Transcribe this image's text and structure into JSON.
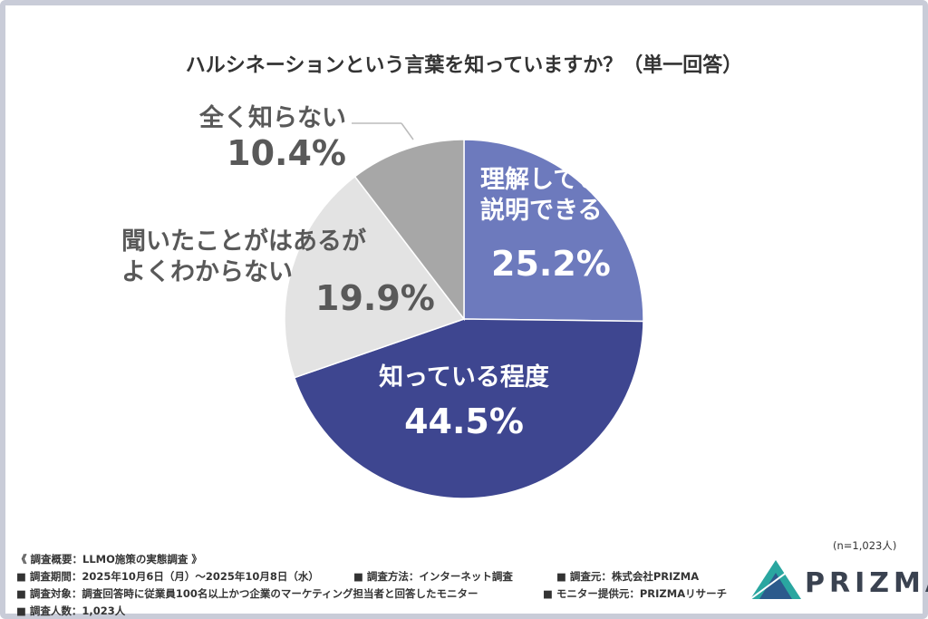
{
  "chart_data": {
    "type": "pie",
    "title": "ハルシネーションという言葉を知っていますか？（単一回答）",
    "categories": [
      "理解していて\n説明できる",
      "知っている程度",
      "聞いたことがはあるが\nよくわからない",
      "全く知らない"
    ],
    "values": [
      25.2,
      44.5,
      19.9,
      10.4
    ],
    "value_labels": [
      "25.2%",
      "44.5%",
      "19.9%",
      "10.4%"
    ],
    "colors": [
      "#6d7abd",
      "#3e4690",
      "#e3e3e3",
      "#a7a7a7"
    ],
    "note": "(n=1,023人)"
  },
  "survey_info": {
    "heading": "《 調査概要：LLMO施策の実態調査 》",
    "period": "■ 調査期間：2025年10月6日（月）～2025年10月8日（水）",
    "method": "■ 調査方法：インターネット調査",
    "source": "■ 調査元：株式会社PRIZMA",
    "target": "■ 調査対象：調査回答時に従業員100名以上かつ企業のマーケティング担当者と回答したモニター",
    "provider": "■ モニター提供元：PRIZMAリサーチ",
    "count": "■ 調査人数：1,023人"
  },
  "logo": "PRIZMA"
}
